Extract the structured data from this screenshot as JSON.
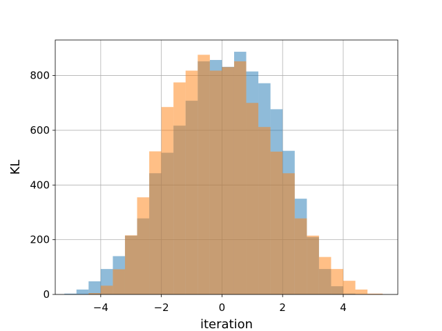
{
  "chart_data": {
    "type": "bar",
    "title": "",
    "xlabel": "iteration",
    "ylabel": "KL",
    "xlim": [
      -5.5,
      5.8
    ],
    "ylim": [
      0,
      930
    ],
    "xticks": [
      -4,
      -2,
      0,
      2,
      4
    ],
    "xtick_labels": [
      "−4",
      "−2",
      "0",
      "2",
      "4"
    ],
    "yticks": [
      0,
      200,
      400,
      600,
      800
    ],
    "ytick_labels": [
      "0",
      "200",
      "400",
      "600",
      "800"
    ],
    "grid": true,
    "legend": "none",
    "series": [
      {
        "color": "#1f77b4",
        "opacity": 0.5,
        "bin_edges": [
          -5.2,
          -4.8,
          -4.4,
          -4.0,
          -3.6,
          -3.2,
          -2.8,
          -2.4,
          -2.0,
          -1.6,
          -1.2,
          -0.8,
          -0.4,
          0.0,
          0.4,
          0.8,
          1.2,
          1.6,
          2.0,
          2.4,
          2.8,
          3.2,
          3.6,
          4.0,
          4.4
        ],
        "counts": [
          3,
          18,
          48,
          93,
          140,
          215,
          278,
          443,
          518,
          617,
          708,
          852,
          857,
          832,
          887,
          815,
          772,
          677,
          525,
          350,
          210,
          93,
          30,
          3
        ]
      },
      {
        "color": "#ff7f0e",
        "opacity": 0.5,
        "bin_edges": [
          -4.4,
          -4.0,
          -3.6,
          -3.2,
          -2.8,
          -2.4,
          -2.0,
          -1.6,
          -1.2,
          -0.8,
          -0.4,
          0.0,
          0.4,
          0.8,
          1.2,
          1.6,
          2.0,
          2.4,
          2.8,
          3.2,
          3.6,
          4.0,
          4.4,
          4.8,
          5.3
        ],
        "counts": [
          5,
          32,
          92,
          216,
          355,
          523,
          685,
          775,
          818,
          876,
          818,
          831,
          852,
          700,
          612,
          522,
          443,
          278,
          215,
          137,
          93,
          50,
          18,
          3
        ]
      }
    ]
  }
}
